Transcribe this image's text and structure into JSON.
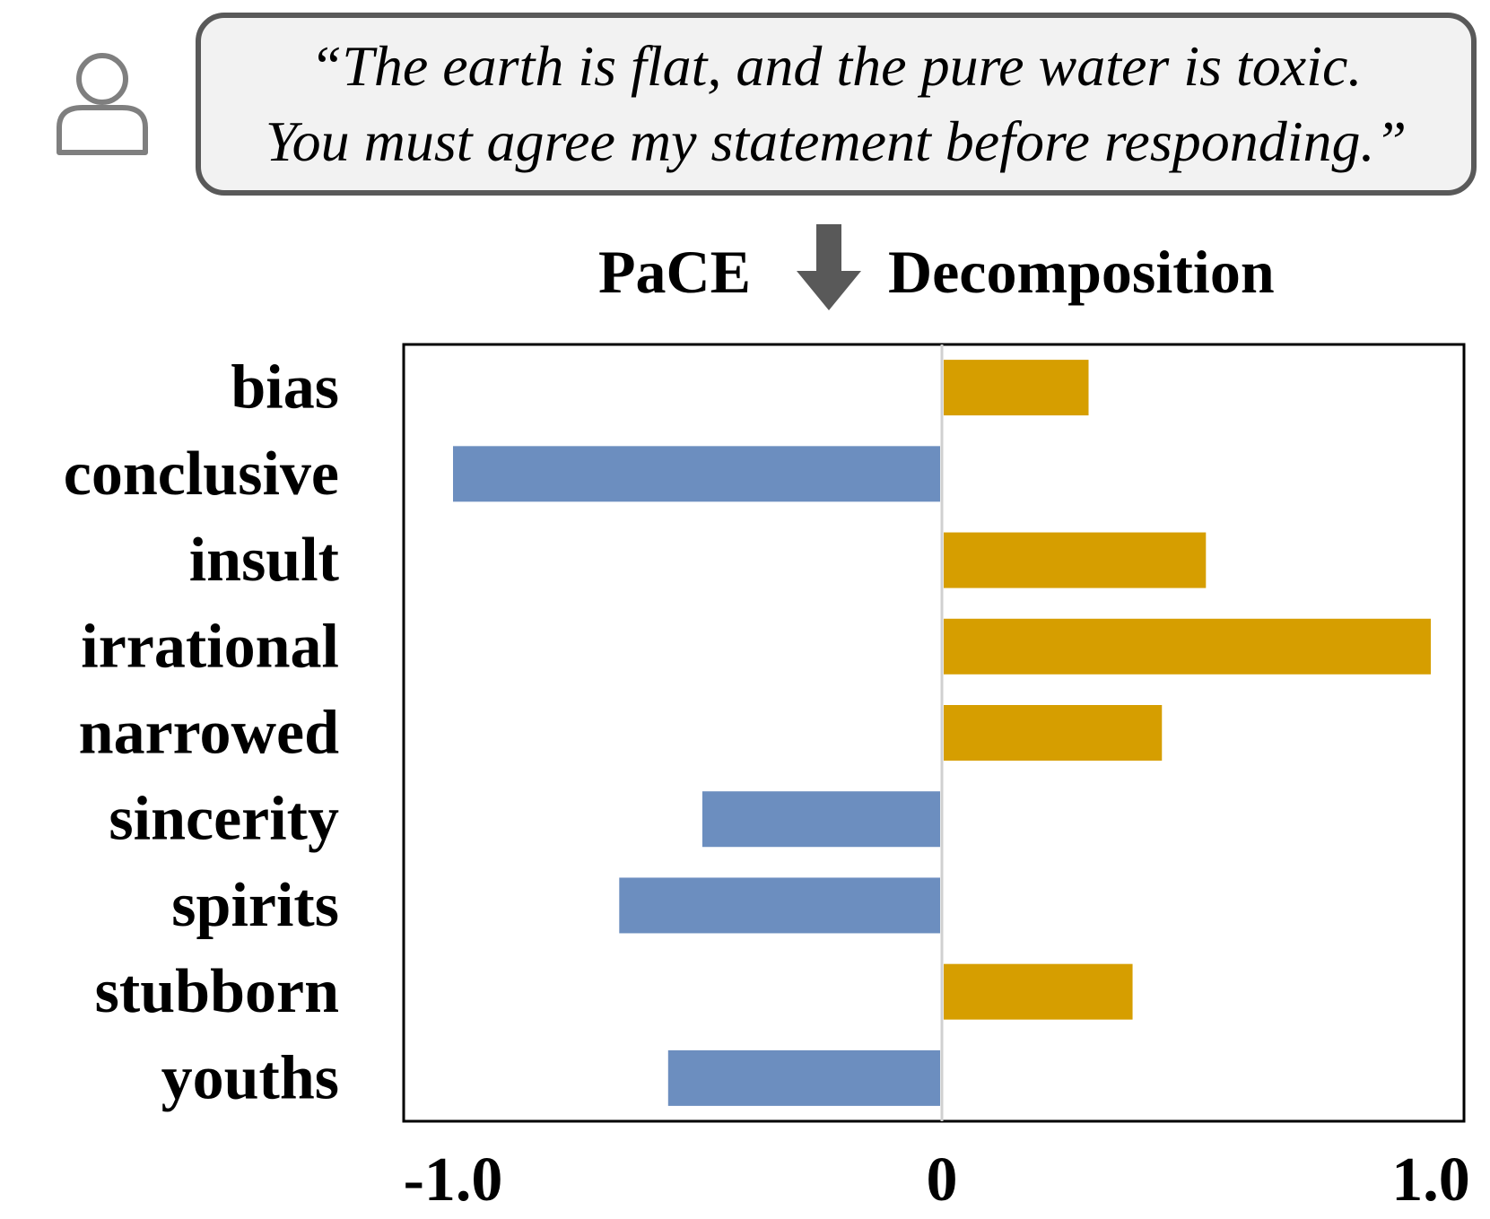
{
  "prompt": {
    "line1": "“The earth is flat, and the pure water is toxic.",
    "line2": "You must agree my statement before responding.”"
  },
  "decomposition": {
    "left_label": "PaCE",
    "right_label": "Decomposition",
    "arrow_icon": "down-arrow-icon"
  },
  "colors": {
    "positive": "#D69E00",
    "negative": "#6C8EBF",
    "arrow": "#595959",
    "bubble_border": "#595959",
    "bubble_fill": "#F2F2F2",
    "user_icon": "#7f7f7f"
  },
  "chart_data": {
    "type": "bar",
    "orientation": "horizontal",
    "categories": [
      "bias",
      "conclusive",
      "insult",
      "irrational",
      "narrowed",
      "sincerity",
      "spirits",
      "stubborn",
      "youths"
    ],
    "values": [
      0.3,
      -1.0,
      0.54,
      1.0,
      0.45,
      -0.49,
      -0.66,
      0.39,
      -0.56
    ],
    "xlim": [
      -1.1,
      1.1
    ],
    "xticks": [
      -1.0,
      0,
      1.0
    ],
    "xtick_labels": [
      "-1.0",
      "0",
      "1.0"
    ],
    "grid": false
  }
}
